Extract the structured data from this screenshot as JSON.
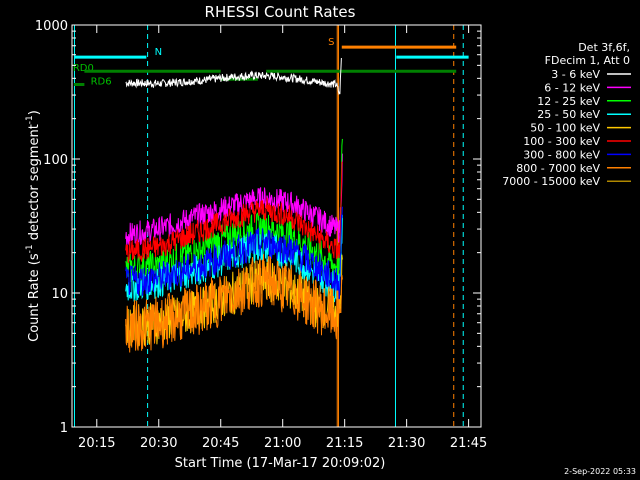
{
  "chart_data": {
    "type": "line",
    "title": "RHESSI Count Rates",
    "xlabel": "Start Time (17-Mar-17 20:09:02)",
    "ylabel_main": "Count Rate (s",
    "ylabel_sup1": "-1",
    "ylabel_mid": " detector segment",
    "ylabel_sup2": "-1",
    "ylabel_end": ")",
    "yscale": "log",
    "ylim": [
      1,
      1000
    ],
    "xlim_minutes": [
      20.15,
      21.8
    ],
    "xlim_note": "minutes 1209-1308 of the day",
    "x_ticks": [
      {
        "label": "20:15",
        "min": 1215
      },
      {
        "label": "20:30",
        "min": 1230
      },
      {
        "label": "20:45",
        "min": 1245
      },
      {
        "label": "21:00",
        "min": 1260
      },
      {
        "label": "21:15",
        "min": 1275
      },
      {
        "label": "21:30",
        "min": 1290
      },
      {
        "label": "21:45",
        "min": 1305
      }
    ],
    "y_ticks": [
      {
        "label": "1",
        "value": 1
      },
      {
        "label": "10",
        "value": 10
      },
      {
        "label": "100",
        "value": 100
      },
      {
        "label": "1000",
        "value": 1000
      }
    ],
    "legend_header": [
      "Det 3f,6f,",
      "FDecim 1, Att 0"
    ],
    "legend_placement": "right",
    "series": [
      {
        "name": "3 - 6 keV",
        "color": "#ffffff",
        "values": [
          [
            1222,
            370
          ],
          [
            1230,
            365
          ],
          [
            1240,
            385
          ],
          [
            1248,
            410
          ],
          [
            1253,
            420
          ],
          [
            1258,
            415
          ],
          [
            1264,
            395
          ],
          [
            1270,
            370
          ],
          [
            1273,
            360
          ],
          [
            1273.8,
            300
          ],
          [
            1274.2,
            560
          ]
        ]
      },
      {
        "name": "6 - 12 keV",
        "color": "#ff00ff",
        "values": [
          [
            1222,
            27
          ],
          [
            1230,
            30
          ],
          [
            1240,
            38
          ],
          [
            1248,
            45
          ],
          [
            1253,
            50
          ],
          [
            1256,
            51
          ],
          [
            1262,
            47
          ],
          [
            1268,
            37
          ],
          [
            1273,
            30
          ],
          [
            1273.8,
            29
          ],
          [
            1274.5,
            110
          ]
        ]
      },
      {
        "name": "12 - 25 keV",
        "color": "#00ff00",
        "values": [
          [
            1222,
            15
          ],
          [
            1230,
            16
          ],
          [
            1240,
            21
          ],
          [
            1248,
            27
          ],
          [
            1253,
            30
          ],
          [
            1256,
            31
          ],
          [
            1262,
            27
          ],
          [
            1268,
            20
          ],
          [
            1273,
            16
          ],
          [
            1273.8,
            15
          ],
          [
            1274.5,
            200
          ]
        ]
      },
      {
        "name": "25 - 50 keV",
        "color": "#00ffff",
        "values": [
          [
            1222,
            11
          ],
          [
            1230,
            12
          ],
          [
            1240,
            15
          ],
          [
            1248,
            19
          ],
          [
            1253,
            22
          ],
          [
            1256,
            22
          ],
          [
            1262,
            19
          ],
          [
            1268,
            14
          ],
          [
            1273,
            11
          ],
          [
            1273.8,
            10.5
          ],
          [
            1274.5,
            45
          ]
        ]
      },
      {
        "name": "50 - 100 keV",
        "color": "#ffc800",
        "values": [
          [
            1222,
            5.6
          ],
          [
            1230,
            6.0
          ],
          [
            1240,
            7.5
          ],
          [
            1248,
            10
          ],
          [
            1253,
            12
          ],
          [
            1256,
            12.5
          ],
          [
            1262,
            10.5
          ],
          [
            1268,
            8
          ],
          [
            1273,
            7.5
          ],
          [
            1273.8,
            7.3
          ],
          [
            1274.5,
            18
          ]
        ]
      },
      {
        "name": "100 - 300 keV",
        "color": "#ff0000",
        "values": [
          [
            1222,
            20
          ],
          [
            1230,
            22
          ],
          [
            1240,
            29
          ],
          [
            1248,
            36
          ],
          [
            1253,
            41
          ],
          [
            1256,
            42
          ],
          [
            1262,
            37
          ],
          [
            1268,
            27
          ],
          [
            1273,
            21
          ],
          [
            1273.8,
            20
          ],
          [
            1274.5,
            130
          ]
        ]
      },
      {
        "name": "300 - 800 keV",
        "color": "#0000ff",
        "values": [
          [
            1222,
            12
          ],
          [
            1230,
            13
          ],
          [
            1240,
            16
          ],
          [
            1248,
            20
          ],
          [
            1253,
            23
          ],
          [
            1256,
            24
          ],
          [
            1262,
            21
          ],
          [
            1268,
            16
          ],
          [
            1273,
            12
          ],
          [
            1273.8,
            11.5
          ],
          [
            1274.5,
            60
          ]
        ]
      },
      {
        "name": "800 - 7000 keV",
        "color": "#ff8000",
        "values": [
          [
            1222,
            5.5
          ],
          [
            1230,
            6.0
          ],
          [
            1240,
            7.5
          ],
          [
            1248,
            10
          ],
          [
            1253,
            12
          ],
          [
            1256,
            12.5
          ],
          [
            1262,
            10.5
          ],
          [
            1268,
            8
          ],
          [
            1273,
            6.6
          ],
          [
            1273.8,
            6.8
          ],
          [
            1274.5,
            16
          ]
        ]
      },
      {
        "name": "7000 - 15000 keV",
        "color": "#b08800",
        "values": []
      }
    ],
    "flag_segments": [
      {
        "label": "",
        "color": "#00ffff",
        "y_frac": 0.08,
        "from_min": 1209.5,
        "to_min": 1227
      },
      {
        "label": "N",
        "color": "#00ffff",
        "label_min": 1229,
        "label_frac": 0.075
      },
      {
        "label": "",
        "color": "#00ffff",
        "y_frac": 0.08,
        "from_min": 1287.5,
        "to_min": 1305
      },
      {
        "label": "S",
        "color": "#ff8000",
        "label_min": 1271,
        "label_frac": 0.05
      },
      {
        "label": "",
        "color": "#ff8000",
        "y_frac": 0.055,
        "from_min": 1274.3,
        "to_min": 1302
      },
      {
        "label": "RD0",
        "color": "#00c000",
        "label_min": 1209.2,
        "label_frac": 0.115
      },
      {
        "label": "",
        "color": "#008000",
        "y_frac": 0.115,
        "from_min": 1212,
        "to_min": 1245
      },
      {
        "label": "",
        "color": "#008000",
        "y_frac": 0.135,
        "from_min": 1245,
        "to_min": 1254
      },
      {
        "label": "",
        "color": "#008000",
        "y_frac": 0.115,
        "from_min": 1256,
        "to_min": 1302
      },
      {
        "label": "RD6",
        "color": "#00c000",
        "label_min": 1213.5,
        "label_frac": 0.148
      },
      {
        "label": "",
        "color": "#008000",
        "y_frac": 0.148,
        "from_min": 1209.5,
        "to_min": 1212
      }
    ],
    "vlines": [
      {
        "min": 1209.6,
        "color": "#00ffff",
        "dash": false
      },
      {
        "min": 1227.3,
        "color": "#00ffff",
        "dash": true
      },
      {
        "min": 1273.2,
        "color": "#ff8000",
        "dash": false
      },
      {
        "min": 1273.5,
        "color": "#ff8000",
        "dash": false
      },
      {
        "min": 1287.3,
        "color": "#00ffff",
        "dash": false
      },
      {
        "min": 1301.4,
        "color": "#ff8000",
        "dash": true
      },
      {
        "min": 1303.7,
        "color": "#00ffff",
        "dash": true
      }
    ],
    "footer": "2-Sep-2022 05:33",
    "grid": false
  }
}
